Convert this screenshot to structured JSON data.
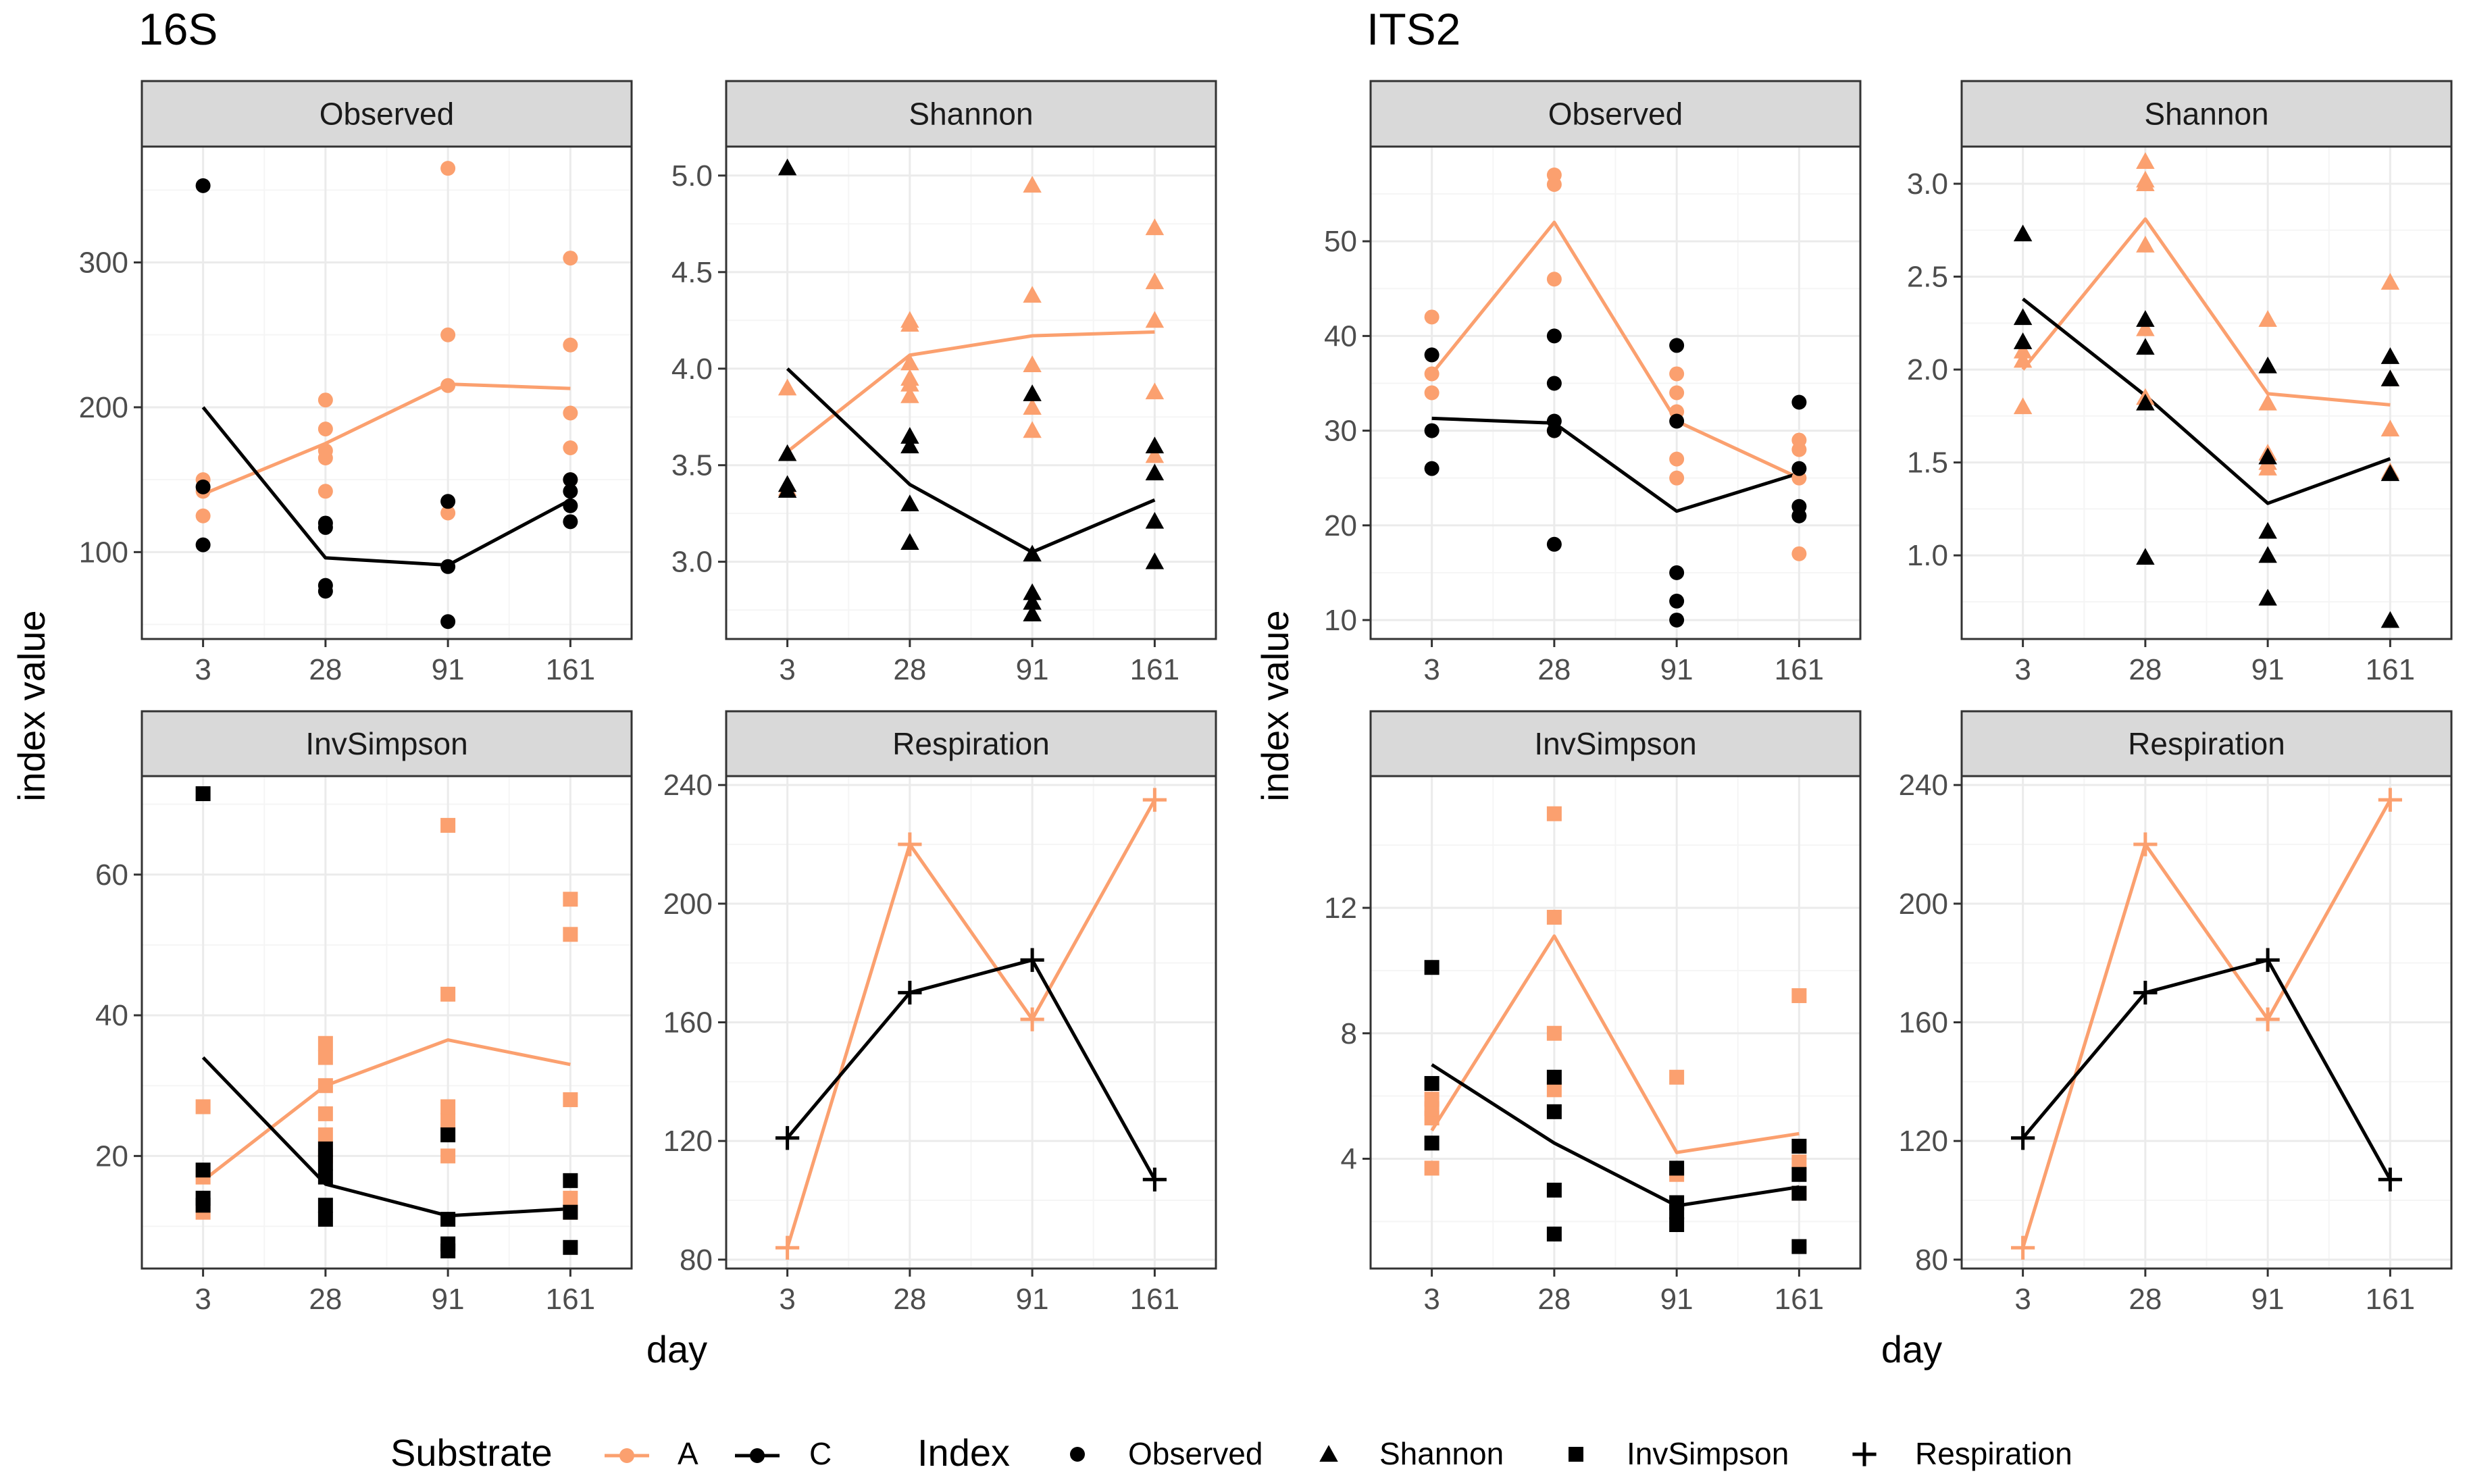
{
  "colors": {
    "A": "#FBA06F",
    "C": "#000000",
    "strip_bg": "#D9D9D9",
    "grid_major": "#EBEBEB",
    "grid_minor": "#F5F5F5",
    "panel_border": "#333333"
  },
  "axis_labels": {
    "y": "index value",
    "x": "day"
  },
  "legend": {
    "substrate_title": "Substrate",
    "substrate_items": [
      {
        "key": "A",
        "label": "A"
      },
      {
        "key": "C",
        "label": "C"
      }
    ],
    "index_title": "Index",
    "index_items": [
      {
        "label": "Observed",
        "shape": "circle"
      },
      {
        "label": "Shannon",
        "shape": "triangle"
      },
      {
        "label": "InvSimpson",
        "shape": "square"
      },
      {
        "label": "Respiration",
        "shape": "plus"
      }
    ]
  },
  "chart_data": [
    {
      "title": "16S",
      "type": "scatter",
      "xlabel": "day",
      "ylabel": "index value",
      "x_categories": [
        "3",
        "28",
        "91",
        "161"
      ],
      "facets": [
        {
          "name": "Observed",
          "shape": "circle",
          "ylim": [
            40,
            380
          ],
          "yticks": [
            100,
            200,
            300
          ],
          "points": {
            "A": [
              [
                125,
                142,
                150
              ],
              [
                142,
                165,
                170,
                185,
                205
              ],
              [
                127,
                215,
                250,
                365
              ],
              [
                150,
                172,
                196,
                243,
                303
              ]
            ],
            "C": [
              [
                105,
                145,
                353
              ],
              [
                73,
                77,
                117,
                120
              ],
              [
                52,
                90,
                135
              ],
              [
                121,
                132,
                142,
                150
              ]
            ]
          },
          "lines": {
            "A": [
              140,
              175,
              216,
              213
            ],
            "C": [
              200,
              96,
              91,
              136
            ]
          }
        },
        {
          "name": "Shannon",
          "shape": "triangle",
          "ylim": [
            2.6,
            5.15
          ],
          "yticks": [
            3.0,
            3.5,
            4.0,
            4.5,
            5.0
          ],
          "points": {
            "A": [
              [
                3.38,
                3.9
              ],
              [
                3.86,
                3.92,
                3.95,
                4.03,
                4.23,
                4.25
              ],
              [
                3.68,
                3.8,
                4.02,
                4.38,
                4.95
              ],
              [
                3.55,
                3.88,
                4.25,
                4.45,
                4.73
              ]
            ],
            "C": [
              [
                3.37,
                3.4,
                3.56,
                5.04
              ],
              [
                3.1,
                3.3,
                3.6,
                3.65
              ],
              [
                2.73,
                2.79,
                2.84,
                3.04,
                3.87
              ],
              [
                3.0,
                3.21,
                3.46,
                3.6
              ]
            ]
          },
          "lines": {
            "A": [
              3.57,
              4.07,
              4.17,
              4.19
            ],
            "C": [
              4.0,
              3.4,
              3.05,
              3.32
            ]
          }
        },
        {
          "name": "InvSimpson",
          "shape": "square",
          "ylim": [
            4,
            74
          ],
          "yticks": [
            20,
            40,
            60
          ],
          "points": {
            "A": [
              [
                12,
                17,
                27
              ],
              [
                20,
                23,
                26,
                30,
                34,
                36
              ],
              [
                20,
                25,
                27,
                43,
                67
              ],
              [
                12,
                14,
                28,
                51.5,
                56.5
              ]
            ],
            "C": [
              [
                13,
                14,
                18,
                71.5
              ],
              [
                11,
                13,
                17,
                19,
                21
              ],
              [
                6.5,
                7.5,
                11,
                23
              ],
              [
                7,
                12,
                16.5
              ]
            ]
          },
          "lines": {
            "A": [
              16.5,
              30,
              36.5,
              33
            ],
            "C": [
              34,
              16,
              11.5,
              12.5
            ]
          }
        },
        {
          "name": "Respiration",
          "shape": "plus",
          "ylim": [
            77,
            243
          ],
          "yticks": [
            80,
            120,
            160,
            200,
            240
          ],
          "points": {
            "A": [
              [
                84
              ],
              [
                220
              ],
              [
                161
              ],
              [
                235
              ]
            ],
            "C": [
              [
                121
              ],
              [
                170
              ],
              [
                181
              ],
              [
                107
              ]
            ]
          },
          "lines": {
            "A": [
              84,
              220,
              161,
              235
            ],
            "C": [
              121,
              170,
              181,
              107
            ]
          }
        }
      ]
    },
    {
      "title": "ITS2",
      "type": "scatter",
      "xlabel": "day",
      "ylabel": "index value",
      "x_categories": [
        "3",
        "28",
        "91",
        "161"
      ],
      "facets": [
        {
          "name": "Observed",
          "shape": "circle",
          "ylim": [
            8,
            60
          ],
          "yticks": [
            10,
            20,
            30,
            40,
            50
          ],
          "points": {
            "A": [
              [
                34,
                36,
                42
              ],
              [
                30,
                46,
                56,
                57
              ],
              [
                25,
                27,
                32,
                34,
                36
              ],
              [
                17,
                25,
                28,
                29
              ]
            ],
            "C": [
              [
                26,
                30,
                38
              ],
              [
                18,
                30,
                31,
                35,
                40
              ],
              [
                10,
                12,
                15,
                31,
                39
              ],
              [
                21,
                22,
                26,
                33
              ]
            ]
          },
          "lines": {
            "A": [
              36,
              52,
              31,
              25
            ],
            "C": [
              31.3,
              30.8,
              21.5,
              25.5
            ]
          }
        },
        {
          "name": "Shannon",
          "shape": "triangle",
          "ylim": [
            0.55,
            3.2
          ],
          "yticks": [
            1.0,
            1.5,
            2.0,
            2.5,
            3.0
          ],
          "points": {
            "A": [
              [
                1.8,
                2.05,
                2.1
              ],
              [
                1.85,
                2.22,
                2.67,
                3.0,
                3.02,
                3.12
              ],
              [
                1.47,
                1.5,
                1.55,
                1.82,
                2.27
              ],
              [
                1.45,
                1.68,
                1.95,
                2.47
              ]
            ],
            "C": [
              [
                2.15,
                2.28,
                2.73
              ],
              [
                0.99,
                1.82,
                2.12,
                2.27
              ],
              [
                0.77,
                1.0,
                1.13,
                1.53,
                2.02
              ],
              [
                0.65,
                1.44,
                1.95,
                2.07
              ]
            ]
          },
          "lines": {
            "A": [
              2.0,
              2.81,
              1.87,
              1.81
            ],
            "C": [
              2.38,
              1.86,
              1.28,
              1.52
            ]
          }
        },
        {
          "name": "InvSimpson",
          "shape": "square",
          "ylim": [
            0.5,
            16.2
          ],
          "yticks": [
            4,
            8,
            12
          ],
          "points": {
            "A": [
              [
                3.7,
                5.3,
                5.6,
                5.9
              ],
              [
                6.2,
                8.0,
                11.7,
                15.0
              ],
              [
                3.5,
                6.6
              ],
              [
                2.9,
                3.9,
                9.2
              ]
            ],
            "C": [
              [
                4.5,
                6.4,
                10.1
              ],
              [
                1.6,
                3.0,
                5.5,
                6.6
              ],
              [
                1.9,
                2.3,
                2.6,
                3.7
              ],
              [
                1.2,
                2.9,
                3.5,
                4.4
              ]
            ]
          },
          "lines": {
            "A": [
              4.9,
              11.1,
              4.2,
              4.8
            ],
            "C": [
              7.0,
              4.5,
              2.5,
              3.1
            ]
          }
        },
        {
          "name": "Respiration",
          "shape": "plus",
          "ylim": [
            77,
            243
          ],
          "yticks": [
            80,
            120,
            160,
            200,
            240
          ],
          "points": {
            "A": [
              [
                84
              ],
              [
                220
              ],
              [
                161
              ],
              [
                235
              ]
            ],
            "C": [
              [
                121
              ],
              [
                170
              ],
              [
                181
              ],
              [
                107
              ]
            ]
          },
          "lines": {
            "A": [
              84,
              220,
              161,
              235
            ],
            "C": [
              121,
              170,
              181,
              107
            ]
          }
        }
      ]
    }
  ]
}
